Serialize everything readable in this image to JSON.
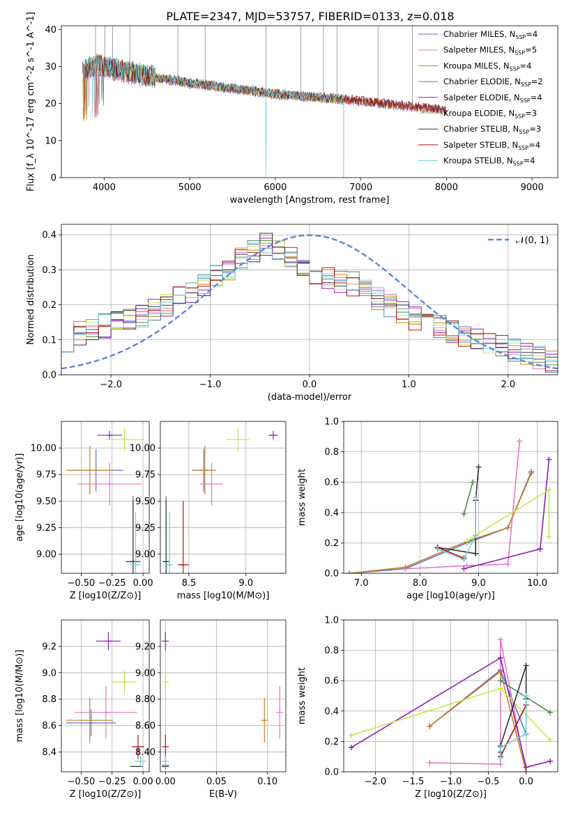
{
  "title": "PLATE=2347, MJD=53757, FIBERID=0133, z=0.018",
  "models": [
    {
      "name": "Chabrier MILES",
      "nssp": "4",
      "color": "#5a74c8"
    },
    {
      "name": "Salpeter MILES",
      "nssp": "5",
      "color": "#e377c2"
    },
    {
      "name": "Kroupa MILES",
      "nssp": "4",
      "color": "#c97d1e"
    },
    {
      "name": "Chabrier ELODIE",
      "nssp": "2",
      "color": "#4f8a4f"
    },
    {
      "name": "Salpeter ELODIE",
      "nssp": "4",
      "color": "#8c1fb0"
    },
    {
      "name": "Kroupa ELODIE",
      "nssp": "3",
      "color": "#c8e64a"
    },
    {
      "name": "Chabrier STELIB",
      "nssp": "3",
      "color": "#333333"
    },
    {
      "name": "Salpeter STELIB",
      "nssp": "4",
      "color": "#b01010"
    },
    {
      "name": "Kroupa STELIB",
      "nssp": "4",
      "color": "#6ed0d8"
    }
  ],
  "chart_data": [
    {
      "id": "spectrum",
      "type": "line",
      "xlabel": "wavelength [Angstrom, rest frame]",
      "ylabel": "Flux [f_λ 10^-17 erg cm^-2 s^-1 A^-1]",
      "xlim": [
        3500,
        9300
      ],
      "ylim": [
        0,
        41
      ],
      "xticks": [
        4000,
        5000,
        6000,
        7000,
        8000,
        9000
      ],
      "yticks": [
        0,
        10,
        20,
        30,
        40
      ],
      "grid": false,
      "legend": "top-right",
      "continuum": {
        "x": [
          3750,
          3900,
          4100,
          4500,
          5000,
          5500,
          6000,
          6500,
          6800,
          7200,
          7600,
          8000,
          8500,
          9000,
          9300
        ],
        "y": [
          29,
          31,
          30,
          28,
          26,
          24.5,
          23,
          22,
          21.5,
          20.5,
          19.5,
          18.5,
          17.5,
          17,
          16.5
        ]
      },
      "model_end_wavelengths": [
        8000,
        8000,
        8000,
        6800,
        6800,
        6800,
        8000,
        8000,
        6800
      ]
    },
    {
      "id": "residuals",
      "type": "line",
      "xlabel": "(data-model)/error",
      "ylabel": "Normed distribution",
      "xlim": [
        -2.5,
        2.5
      ],
      "ylim": [
        0,
        0.43
      ],
      "xticks": [
        -2,
        -1,
        0,
        1,
        2
      ],
      "yticks": [
        0.0,
        0.1,
        0.2,
        0.3,
        0.4
      ],
      "grid": true,
      "legend": "top-right",
      "reference_curve": {
        "name": "𝒩(0, 1)",
        "mean": 0,
        "sigma": 1,
        "color": "#5b86d6"
      },
      "bins": 40,
      "base_histogram": [
        0.1,
        0.12,
        0.13,
        0.14,
        0.15,
        0.16,
        0.17,
        0.19,
        0.2,
        0.22,
        0.24,
        0.26,
        0.28,
        0.3,
        0.33,
        0.35,
        0.37,
        0.36,
        0.33,
        0.31,
        0.29,
        0.28,
        0.27,
        0.26,
        0.24,
        0.22,
        0.2,
        0.18,
        0.16,
        0.15,
        0.14,
        0.12,
        0.11,
        0.1,
        0.09,
        0.08,
        0.07,
        0.06,
        0.05,
        0.04
      ]
    },
    {
      "id": "age-vs-Z",
      "type": "scatter",
      "xlabel": "Z [log10(Z/Z⊙)]",
      "ylabel": "age [log10(age/yr)]",
      "xlim": [
        -0.66,
        0.05
      ],
      "ylim": [
        8.82,
        10.25
      ],
      "xticks": [
        -0.5,
        -0.25,
        0.0
      ],
      "yticks": [
        9.0,
        9.25,
        9.5,
        9.75,
        10.0
      ],
      "points": [
        {
          "x": -0.38,
          "y": 9.79,
          "xerr": 0.22,
          "yerr": 0.2
        },
        {
          "x": -0.27,
          "y": 9.66,
          "xerr": 0.26,
          "yerr": 0.2
        },
        {
          "x": -0.43,
          "y": 9.79,
          "xerr": 0.19,
          "yerr": 0.23
        },
        {
          "x": -0.08,
          "y": 8.93,
          "xerr": 0.02,
          "yerr": 0.62
        },
        {
          "x": -0.27,
          "y": 10.12,
          "xerr": 0.1,
          "yerr": 0.04
        },
        {
          "x": -0.15,
          "y": 10.08,
          "xerr": 0.16,
          "yerr": 0.11
        },
        {
          "x": -0.08,
          "y": 8.93,
          "xerr": 0.06,
          "yerr": 0.58
        },
        {
          "x": -0.06,
          "y": 8.9,
          "xerr": 0.0,
          "yerr": 0.0
        },
        {
          "x": -0.06,
          "y": 8.9,
          "xerr": 0.04,
          "yerr": 0.5
        }
      ]
    },
    {
      "id": "age-vs-mass",
      "type": "scatter",
      "xlabel": "mass [log10(M/M⊙)]",
      "ylabel": "",
      "xlim": [
        8.25,
        9.35
      ],
      "ylim": [
        8.82,
        10.25
      ],
      "xticks": [
        8.5,
        9.0
      ],
      "yticks": [
        9.0,
        9.25,
        9.5,
        9.75,
        10.0
      ],
      "points": [
        {
          "x": 8.63,
          "y": 9.79,
          "xerr": 0.1,
          "yerr": 0.2
        },
        {
          "x": 8.7,
          "y": 9.66,
          "xerr": 0.1,
          "yerr": 0.2
        },
        {
          "x": 8.64,
          "y": 9.79,
          "xerr": 0.1,
          "yerr": 0.23
        },
        {
          "x": 8.3,
          "y": 8.93,
          "xerr": 0.0,
          "yerr": 0.62
        },
        {
          "x": 9.24,
          "y": 10.12,
          "xerr": 0.04,
          "yerr": 0.04
        },
        {
          "x": 8.93,
          "y": 10.08,
          "xerr": 0.1,
          "yerr": 0.11
        },
        {
          "x": 8.3,
          "y": 8.93,
          "xerr": 0.0,
          "yerr": 0.58
        },
        {
          "x": 8.45,
          "y": 8.9,
          "xerr": 0.05,
          "yerr": 0.6
        },
        {
          "x": 8.33,
          "y": 8.9,
          "xerr": 0.02,
          "yerr": 0.5
        }
      ]
    },
    {
      "id": "mass-weight-vs-age",
      "type": "line",
      "xlabel": "age [log10(age/yr)]",
      "ylabel": "mass weight",
      "xlim": [
        6.7,
        10.35
      ],
      "ylim": [
        0,
        1.0
      ],
      "xticks": [
        7,
        8,
        9,
        10
      ],
      "yticks": [
        0.0,
        0.2,
        0.4,
        0.6,
        0.8,
        1.0
      ],
      "grid": true,
      "series": [
        {
          "x": [
            6.8,
            7.75,
            8.8,
            9.5,
            9.9
          ],
          "y": [
            0.0,
            0.03,
            0.2,
            0.3,
            0.67
          ]
        },
        {
          "x": [
            7.75,
            8.8,
            9.5,
            9.7
          ],
          "y": [
            0.03,
            0.05,
            0.06,
            0.87
          ]
        },
        {
          "x": [
            6.8,
            7.75,
            8.8,
            9.5,
            9.9
          ],
          "y": [
            0.0,
            0.04,
            0.21,
            0.3,
            0.66
          ]
        },
        {
          "x": [
            8.75,
            8.9
          ],
          "y": [
            0.39,
            0.6
          ]
        },
        {
          "x": [
            8.75,
            10.05,
            10.2
          ],
          "y": [
            0.03,
            0.16,
            0.75
          ]
        },
        {
          "x": [
            8.8,
            8.95,
            10.2,
            10.2
          ],
          "y": [
            0.21,
            0.25,
            0.55,
            0.24
          ]
        },
        {
          "x": [
            8.3,
            8.95,
            8.95,
            9.0
          ],
          "y": [
            0.17,
            0.13,
            0.48,
            0.7
          ]
        },
        {
          "x": [
            8.3,
            8.75
          ],
          "y": [
            0.17,
            0.1
          ]
        },
        {
          "x": [
            8.3,
            8.75,
            8.95,
            8.95
          ],
          "y": [
            0.16,
            0.09,
            0.25,
            0.5
          ]
        }
      ]
    },
    {
      "id": "mass-vs-Z",
      "type": "scatter",
      "xlabel": "Z [log10(Z/Z⊙)]",
      "ylabel": "mass [log10(M/M⊙)]",
      "xlim": [
        -0.66,
        0.05
      ],
      "ylim": [
        8.25,
        9.4
      ],
      "xticks": [
        -0.5,
        -0.25,
        0.0
      ],
      "yticks": [
        8.4,
        8.6,
        8.8,
        9.0,
        9.2
      ],
      "points": [
        {
          "x": -0.42,
          "y": 8.62,
          "xerr": 0.2,
          "yerr": 0.1
        },
        {
          "x": -0.3,
          "y": 8.7,
          "xerr": 0.25,
          "yerr": 0.2
        },
        {
          "x": -0.43,
          "y": 8.64,
          "xerr": 0.19,
          "yerr": 0.17
        },
        {
          "x": -0.06,
          "y": 8.29,
          "xerr": 0.05,
          "yerr": 0.0
        },
        {
          "x": -0.28,
          "y": 9.24,
          "xerr": 0.1,
          "yerr": 0.07
        },
        {
          "x": -0.15,
          "y": 8.93,
          "xerr": 0.1,
          "yerr": 0.09
        },
        {
          "x": -0.05,
          "y": 8.29,
          "xerr": 0.05,
          "yerr": 0.0
        },
        {
          "x": -0.04,
          "y": 8.44,
          "xerr": 0.05,
          "yerr": 0.09
        },
        {
          "x": -0.02,
          "y": 8.33,
          "xerr": 0.05,
          "yerr": 0.04
        }
      ]
    },
    {
      "id": "mass-vs-ebv",
      "type": "scatter",
      "xlabel": "E(B-V)",
      "ylabel": "",
      "xlim": [
        -0.005,
        0.118
      ],
      "ylim": [
        8.25,
        9.4
      ],
      "xticks": [
        0.0,
        0.05,
        0.1
      ],
      "yticks": [
        8.4,
        8.6,
        8.8,
        9.0,
        9.2
      ],
      "points": [
        {
          "x": 0.0,
          "y": 8.3,
          "xerr": 0.0,
          "yerr": 0.03
        },
        {
          "x": 0.112,
          "y": 8.7,
          "xerr": 0.0,
          "yerr": 0.2
        },
        {
          "x": 0.097,
          "y": 8.64,
          "xerr": 0.0,
          "yerr": 0.17
        },
        {
          "x": 0.0,
          "y": 8.29,
          "xerr": 0.0,
          "yerr": 0.0
        },
        {
          "x": 0.0,
          "y": 9.24,
          "xerr": 0.0,
          "yerr": 0.07
        },
        {
          "x": 0.0,
          "y": 8.93,
          "xerr": 0.0,
          "yerr": 0.09
        },
        {
          "x": 0.0,
          "y": 8.29,
          "xerr": 0.0,
          "yerr": 0.0
        },
        {
          "x": 0.0,
          "y": 8.44,
          "xerr": 0.0,
          "yerr": 0.09
        },
        {
          "x": 0.0,
          "y": 8.33,
          "xerr": 0.0,
          "yerr": 0.04
        }
      ]
    },
    {
      "id": "mass-weight-vs-Z",
      "type": "line",
      "xlabel": "Z [log10(Z/Z⊙)]",
      "ylabel": "mass weight",
      "xlim": [
        -2.42,
        0.42
      ],
      "ylim": [
        0,
        1.0
      ],
      "xticks": [
        -2.0,
        -1.5,
        -1.0,
        -0.5,
        0.0
      ],
      "yticks": [
        0.0,
        0.2,
        0.4,
        0.6,
        0.8,
        1.0
      ],
      "grid": true,
      "series": [
        {
          "x": [
            -1.28,
            -0.34,
            -0.34,
            0.0
          ],
          "y": [
            0.3,
            0.67,
            0.67,
            0.25
          ]
        },
        {
          "x": [
            -1.28,
            -0.34,
            -0.34,
            0.0
          ],
          "y": [
            0.06,
            0.05,
            0.87,
            0.0
          ]
        },
        {
          "x": [
            -1.28,
            -0.34,
            -0.34,
            0.0
          ],
          "y": [
            0.3,
            0.66,
            0.66,
            0.0
          ]
        },
        {
          "x": [
            -0.34,
            0.32
          ],
          "y": [
            0.6,
            0.39
          ]
        },
        {
          "x": [
            -2.32,
            -0.34,
            0.0,
            0.32
          ],
          "y": [
            0.16,
            0.75,
            0.03,
            0.07
          ]
        },
        {
          "x": [
            -2.32,
            -0.34,
            0.32
          ],
          "y": [
            0.24,
            0.55,
            0.21
          ]
        },
        {
          "x": [
            -0.34,
            -0.34,
            0.0,
            0.0
          ],
          "y": [
            0.13,
            0.17,
            0.7,
            0.48
          ]
        },
        {
          "x": [
            -0.34,
            0.0
          ],
          "y": [
            0.1,
            0.44
          ]
        },
        {
          "x": [
            -0.34,
            -0.34,
            0.0,
            0.0
          ],
          "y": [
            0.09,
            0.16,
            0.25,
            0.5
          ]
        }
      ]
    }
  ]
}
